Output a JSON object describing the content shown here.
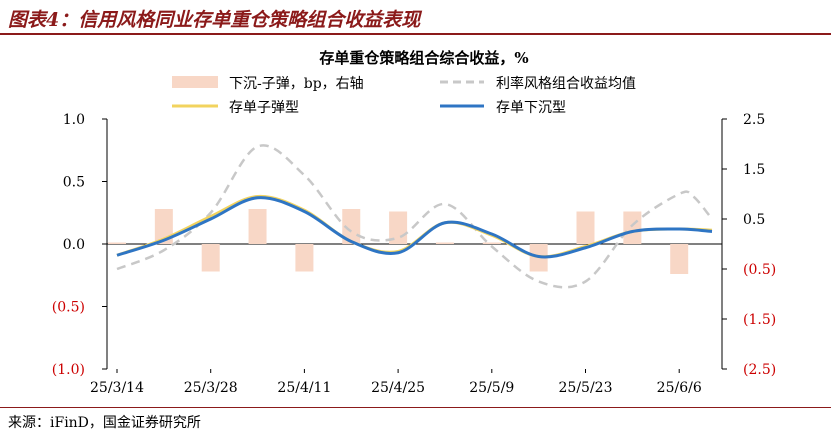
{
  "figure": {
    "title": "图表4：信用风格同业存单重仓策略组合收益表现",
    "source": "来源：iFinD，国金证券研究所"
  },
  "chart_data": {
    "type": "line",
    "title": "存单重仓策略组合综合收益，%",
    "x_ticks": [
      "25/3/14",
      "25/3/28",
      "25/4/11",
      "25/4/25",
      "25/5/9",
      "25/5/23",
      "25/6/6"
    ],
    "left_axis": {
      "ticks": [
        "1.0",
        "0.5",
        "0.0",
        "(0.5)",
        "(1.0)"
      ],
      "values": [
        1.0,
        0.5,
        0.0,
        -0.5,
        -1.0
      ],
      "ylim": [
        -1.0,
        1.0
      ]
    },
    "right_axis": {
      "ticks": [
        "2.5",
        "1.5",
        "0.5",
        "(0.5)",
        "(1.5)",
        "(2.5)"
      ],
      "values": [
        2.5,
        1.5,
        0.5,
        -0.5,
        -1.5,
        -2.5
      ],
      "ylim": [
        -2.5,
        2.5
      ]
    },
    "negative_tick_color": "#cc0000",
    "bar_dates": [
      0,
      1,
      2,
      3,
      4,
      5,
      6,
      7,
      8,
      9,
      10,
      11,
      12
    ],
    "bars": {
      "name": "下沉-子弹，bp，右轴",
      "color": "#f8d7c6",
      "values": [
        0.03,
        0.7,
        -0.55,
        0.7,
        -0.55,
        0.7,
        0.65,
        0.03,
        0.03,
        -0.55,
        0.65,
        0.65,
        -0.6
      ]
    },
    "series": [
      {
        "name": "利率风格组合收益均值",
        "color": "#c8c8c8",
        "style": "dashed",
        "points": [
          [
            0,
            -0.2
          ],
          [
            1,
            -0.05
          ],
          [
            2,
            0.25
          ],
          [
            3,
            0.78
          ],
          [
            4,
            0.55
          ],
          [
            5,
            0.1
          ],
          [
            6,
            0.05
          ],
          [
            7,
            0.32
          ],
          [
            8,
            -0.02
          ],
          [
            9,
            -0.3
          ],
          [
            10,
            -0.3
          ],
          [
            11,
            0.15
          ],
          [
            12,
            0.4
          ],
          [
            12.3,
            0.38
          ],
          [
            12.7,
            0.2
          ]
        ]
      },
      {
        "name": "存单子弹型",
        "color": "#f2d35e",
        "style": "solid",
        "points": [
          [
            0,
            -0.09
          ],
          [
            1,
            0.04
          ],
          [
            2,
            0.22
          ],
          [
            3,
            0.38
          ],
          [
            4,
            0.27
          ],
          [
            5,
            0.02
          ],
          [
            6,
            -0.06
          ],
          [
            7,
            0.17
          ],
          [
            8,
            0.07
          ],
          [
            9,
            -0.1
          ],
          [
            10,
            -0.02
          ],
          [
            11,
            0.1
          ],
          [
            12,
            0.12
          ],
          [
            12.7,
            0.11
          ]
        ]
      },
      {
        "name": "存单下沉型",
        "color": "#2e75c4",
        "style": "solid",
        "points": [
          [
            0,
            -0.09
          ],
          [
            1,
            0.03
          ],
          [
            2,
            0.2
          ],
          [
            3,
            0.37
          ],
          [
            4,
            0.26
          ],
          [
            5,
            0.02
          ],
          [
            6,
            -0.07
          ],
          [
            7,
            0.17
          ],
          [
            8,
            0.08
          ],
          [
            9,
            -0.1
          ],
          [
            10,
            -0.03
          ],
          [
            11,
            0.1
          ],
          [
            12,
            0.12
          ],
          [
            12.7,
            0.1
          ]
        ]
      }
    ],
    "legend_placement": "top",
    "grid": false
  }
}
